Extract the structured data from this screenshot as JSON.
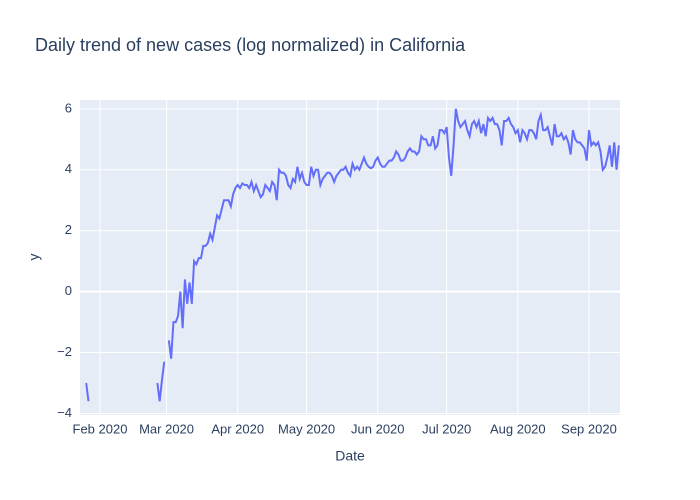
{
  "chart_data": {
    "type": "line",
    "title": "Daily trend of new cases (log normalized) in California",
    "x_label": "Date",
    "y_label": "y",
    "color": "#636efa",
    "grid": true,
    "background": "#e5ecf6",
    "x": [
      26,
      27,
      28,
      57,
      58,
      59,
      60,
      61,
      62,
      63,
      64,
      65,
      66,
      67,
      68,
      69,
      70,
      71,
      72,
      73,
      74,
      75,
      76,
      77,
      78,
      79,
      80,
      81,
      82,
      83,
      84,
      85,
      86,
      87,
      88,
      89,
      90,
      91,
      92,
      93,
      94,
      95,
      96,
      97,
      98,
      99,
      100,
      101,
      102,
      103,
      104,
      105,
      106,
      107,
      108,
      109,
      110,
      111,
      112,
      113,
      114,
      115,
      116,
      117,
      118,
      119,
      120,
      121,
      122,
      123,
      124,
      125,
      126,
      127,
      128,
      129,
      130,
      131,
      132,
      133,
      134,
      135,
      136,
      137,
      138,
      139,
      140,
      141,
      142,
      143,
      144,
      145,
      146,
      147,
      148,
      149,
      150,
      151,
      152,
      153,
      154,
      155,
      156,
      157,
      158,
      159,
      160,
      161,
      162,
      163,
      164,
      165,
      166,
      167,
      168,
      169,
      170,
      171,
      172,
      173,
      174,
      175,
      176,
      177,
      178,
      179,
      180,
      181,
      182,
      183,
      184,
      185,
      186,
      187,
      188,
      189,
      190,
      191,
      192,
      193,
      194,
      195,
      196,
      197,
      198,
      199,
      200,
      201,
      202,
      203,
      204,
      205,
      206,
      207,
      208,
      209,
      210,
      211,
      212,
      213,
      214,
      215,
      216,
      217,
      218,
      219,
      220,
      221,
      222,
      223,
      224,
      225,
      226,
      227,
      228,
      229,
      230,
      231,
      232,
      233,
      234,
      235,
      236,
      237,
      238,
      239,
      240,
      241,
      242,
      243,
      244,
      245,
      246,
      247,
      248,
      249,
      250,
      251,
      252,
      253,
      254,
      255,
      256,
      257,
      258
    ],
    "values": [
      -3.0,
      -3.6,
      null,
      -3.0,
      -3.6,
      -2.9,
      -2.3,
      null,
      -1.6,
      -2.2,
      -1.0,
      -1.0,
      -0.8,
      0.0,
      -1.2,
      0.4,
      -0.4,
      0.3,
      -0.4,
      1.0,
      0.9,
      1.1,
      1.1,
      1.5,
      1.5,
      1.6,
      1.9,
      1.7,
      2.1,
      2.5,
      2.4,
      2.7,
      3.0,
      3.0,
      3.0,
      2.8,
      3.2,
      3.4,
      3.5,
      3.4,
      3.55,
      3.5,
      3.5,
      3.4,
      3.6,
      3.3,
      3.5,
      3.3,
      3.1,
      3.2,
      3.5,
      3.4,
      3.3,
      3.6,
      3.5,
      3.0,
      4.0,
      3.9,
      3.9,
      3.8,
      3.5,
      3.4,
      3.7,
      3.6,
      4.1,
      3.7,
      3.9,
      3.6,
      3.5,
      3.5,
      4.1,
      3.8,
      4.0,
      4.0,
      3.5,
      3.7,
      3.8,
      3.9,
      3.9,
      3.8,
      3.6,
      3.8,
      3.9,
      4.0,
      4.0,
      4.1,
      3.9,
      3.8,
      4.2,
      4.0,
      4.1,
      4.0,
      4.2,
      4.4,
      4.2,
      4.1,
      4.05,
      4.1,
      4.3,
      4.4,
      4.2,
      4.1,
      4.1,
      4.2,
      4.3,
      4.3,
      4.4,
      4.6,
      4.5,
      4.3,
      4.3,
      4.4,
      4.6,
      4.7,
      4.6,
      4.6,
      4.5,
      4.6,
      5.1,
      5.0,
      5.0,
      4.8,
      4.8,
      5.1,
      4.7,
      4.8,
      5.3,
      5.3,
      5.2,
      5.4,
      4.4,
      3.8,
      4.8,
      6.0,
      5.6,
      5.4,
      5.5,
      5.6,
      5.3,
      5.1,
      5.5,
      5.6,
      5.4,
      5.6,
      5.2,
      5.5,
      5.1,
      5.7,
      5.6,
      5.7,
      5.5,
      5.5,
      5.3,
      4.8,
      5.6,
      5.6,
      5.7,
      5.5,
      5.4,
      5.2,
      5.3,
      4.9,
      5.3,
      5.2,
      5.0,
      5.3,
      5.3,
      5.2,
      5.0,
      5.6,
      5.8,
      5.3,
      5.3,
      5.4,
      5.1,
      4.8,
      5.5,
      5.1,
      5.1,
      5.2,
      5.0,
      5.1,
      4.9,
      4.5,
      5.3,
      5.0,
      4.9,
      4.9,
      4.8,
      4.7,
      4.3,
      5.3,
      4.8,
      4.9,
      4.8,
      4.9,
      4.6,
      4.0,
      4.1,
      4.4,
      4.8,
      4.1,
      4.9,
      4.0,
      4.8
    ],
    "xlim": [
      23.3,
      258.5
    ],
    "xticks": [
      {
        "value": 32,
        "label": "Feb 2020"
      },
      {
        "value": 61,
        "label": "Mar 2020"
      },
      {
        "value": 92,
        "label": "Apr 2020"
      },
      {
        "value": 122,
        "label": "May 2020"
      },
      {
        "value": 153,
        "label": "Jun 2020"
      },
      {
        "value": 183,
        "label": "Jul 2020"
      },
      {
        "value": 214,
        "label": "Aug 2020"
      },
      {
        "value": 245,
        "label": "Sep 2020"
      }
    ],
    "ylim": [
      -4.05,
      6.29
    ],
    "yticks": [
      {
        "value": -4,
        "label": "−4"
      },
      {
        "value": -2,
        "label": "−2"
      },
      0,
      2,
      4,
      6
    ]
  }
}
